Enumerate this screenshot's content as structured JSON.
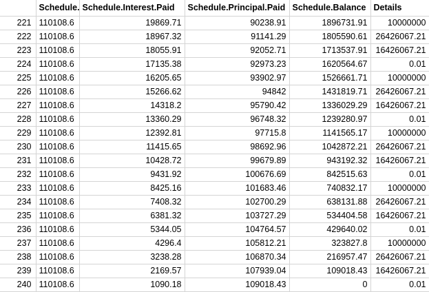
{
  "headers": [
    "",
    "Schedule.",
    "Schedule.Interest.Paid",
    "Schedule.Principal.Paid",
    "Schedule.Balance",
    "Details"
  ],
  "rows": [
    [
      "221",
      "110108.6",
      "19869.71",
      "90238.91",
      "1896731.91",
      "10000000"
    ],
    [
      "222",
      "110108.6",
      "18967.32",
      "91141.29",
      "1805590.61",
      "26426067.21"
    ],
    [
      "223",
      "110108.6",
      "18055.91",
      "92052.71",
      "1713537.91",
      "16426067.21"
    ],
    [
      "224",
      "110108.6",
      "17135.38",
      "92973.23",
      "1620564.67",
      "0.01"
    ],
    [
      "225",
      "110108.6",
      "16205.65",
      "93902.97",
      "1526661.71",
      "10000000"
    ],
    [
      "226",
      "110108.6",
      "15266.62",
      "94842",
      "1431819.71",
      "26426067.21"
    ],
    [
      "227",
      "110108.6",
      "14318.2",
      "95790.42",
      "1336029.29",
      "16426067.21"
    ],
    [
      "228",
      "110108.6",
      "13360.29",
      "96748.32",
      "1239280.97",
      "0.01"
    ],
    [
      "229",
      "110108.6",
      "12392.81",
      "97715.8",
      "1141565.17",
      "10000000"
    ],
    [
      "230",
      "110108.6",
      "11415.65",
      "98692.96",
      "1042872.21",
      "26426067.21"
    ],
    [
      "231",
      "110108.6",
      "10428.72",
      "99679.89",
      "943192.32",
      "16426067.21"
    ],
    [
      "232",
      "110108.6",
      "9431.92",
      "100676.69",
      "842515.63",
      "0.01"
    ],
    [
      "233",
      "110108.6",
      "8425.16",
      "101683.46",
      "740832.17",
      "10000000"
    ],
    [
      "234",
      "110108.6",
      "7408.32",
      "102700.29",
      "638131.88",
      "26426067.21"
    ],
    [
      "235",
      "110108.6",
      "6381.32",
      "103727.29",
      "534404.58",
      "16426067.21"
    ],
    [
      "236",
      "110108.6",
      "5344.05",
      "104764.57",
      "429640.02",
      "0.01"
    ],
    [
      "237",
      "110108.6",
      "4296.4",
      "105812.21",
      "323827.8",
      "10000000"
    ],
    [
      "238",
      "110108.6",
      "3238.28",
      "106870.34",
      "216957.47",
      "26426067.21"
    ],
    [
      "239",
      "110108.6",
      "2169.57",
      "107939.04",
      "109018.43",
      "16426067.21"
    ],
    [
      "240",
      "110108.6",
      "1090.18",
      "109018.43",
      "0",
      "0.01"
    ]
  ]
}
